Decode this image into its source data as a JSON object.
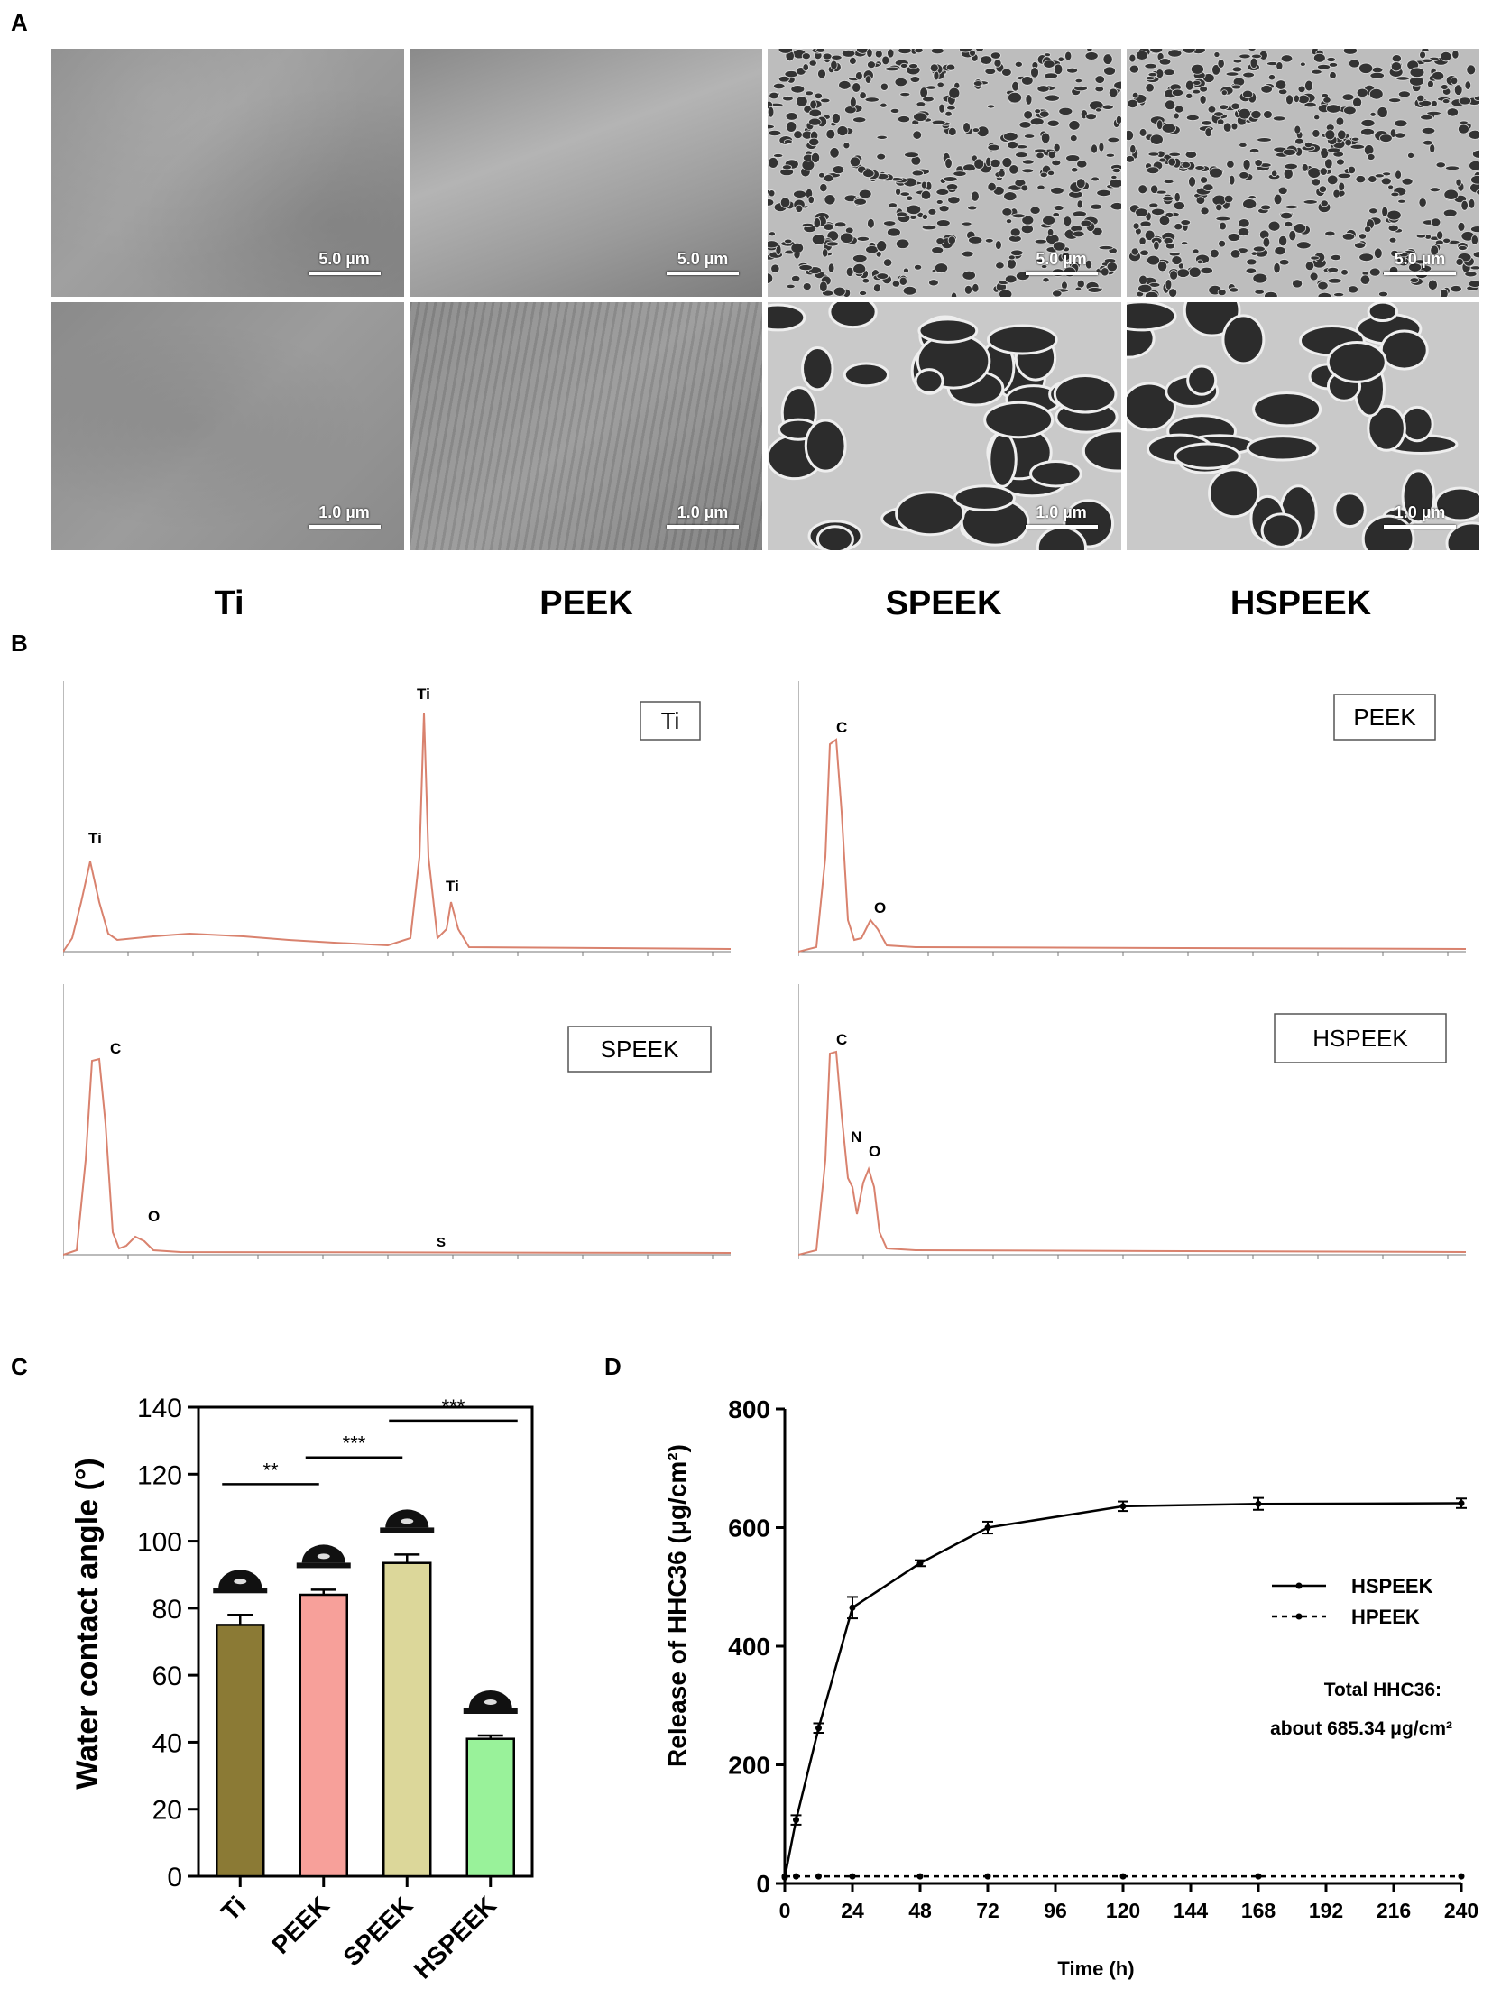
{
  "panel_letters": {
    "a": "A",
    "b": "B",
    "c": "C",
    "d": "D"
  },
  "sem": {
    "columns": [
      "Ti",
      "PEEK",
      "SPEEK",
      "HSPEEK"
    ],
    "scale_top": "5.0 µm",
    "scale_bottom": "1.0 µm"
  },
  "eds": [
    {
      "box": "Ti",
      "peaks": [
        "Ti",
        "Ti",
        "Ti"
      ]
    },
    {
      "box": "PEEK",
      "peaks": [
        "C",
        "O"
      ]
    },
    {
      "box": "SPEEK",
      "peaks": [
        "C",
        "O",
        "S"
      ]
    },
    {
      "box": "HSPEEK",
      "peaks": [
        "C",
        "N",
        "O"
      ]
    }
  ],
  "chart_data": [
    {
      "type": "bar",
      "ylabel": "Water contact angle (°)",
      "categories": [
        "Ti",
        "PEEK",
        "SPEEK",
        "HSPEEK"
      ],
      "values": [
        75,
        84,
        93.5,
        41
      ],
      "errors": [
        3,
        1.5,
        2.5,
        1
      ],
      "ylim": [
        0,
        140
      ],
      "yticks": [
        0,
        20,
        40,
        60,
        80,
        100,
        120,
        140
      ],
      "colors": [
        "#8b7a35",
        "#f7a09a",
        "#dcd79a",
        "#99f29a"
      ],
      "significance": [
        {
          "pair": [
            "Ti",
            "PEEK"
          ],
          "label": "**"
        },
        {
          "pair": [
            "PEEK",
            "SPEEK"
          ],
          "label": "***"
        },
        {
          "pair": [
            "SPEEK",
            "HSPEEK"
          ],
          "label": "***"
        }
      ]
    },
    {
      "type": "line",
      "ylabel": "Release of HHC36 (μg/cm²)",
      "xlabel": "Time (h)",
      "xlim": [
        0,
        240
      ],
      "ylim": [
        0,
        800
      ],
      "xticks": [
        0,
        24,
        48,
        72,
        96,
        120,
        144,
        168,
        192,
        216,
        240
      ],
      "yticks": [
        0,
        200,
        400,
        600,
        800
      ],
      "series": [
        {
          "name": "HSPEEK",
          "style": "solid",
          "x": [
            0,
            4,
            12,
            24,
            48,
            72,
            120,
            168,
            240
          ],
          "y": [
            10,
            107,
            262,
            465,
            540,
            600,
            636,
            640,
            641
          ],
          "err": [
            0,
            8,
            8,
            18,
            5,
            10,
            8,
            10,
            8
          ]
        },
        {
          "name": "HPEEK",
          "style": "dashed",
          "x": [
            0,
            4,
            12,
            24,
            48,
            72,
            120,
            168,
            240
          ],
          "y": [
            12,
            12,
            12,
            12,
            12,
            12,
            12,
            12,
            12
          ],
          "err": [
            0,
            0,
            0,
            0,
            0,
            0,
            0,
            0,
            0
          ]
        }
      ],
      "annotation_line1": "Total HHC36:",
      "annotation_line2": "about 685.34 μg/cm²"
    }
  ]
}
